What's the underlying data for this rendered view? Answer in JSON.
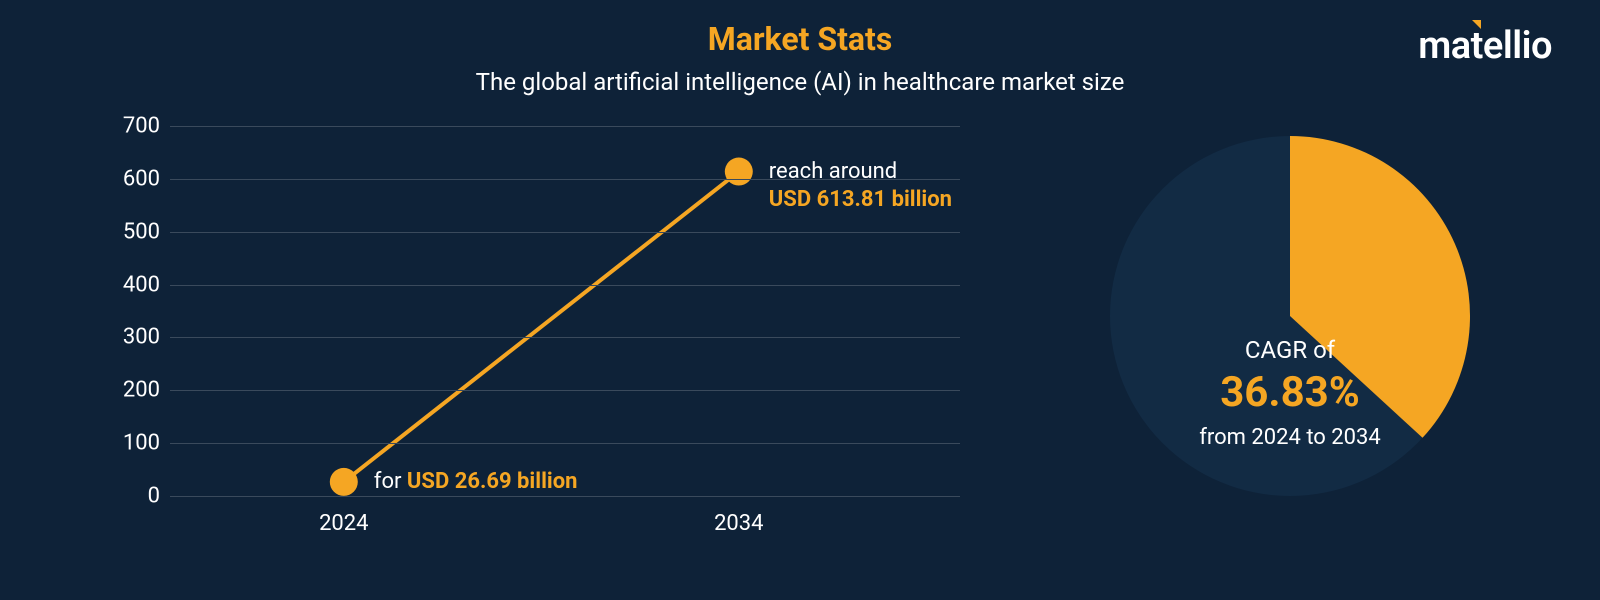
{
  "brand": {
    "name": "matellio"
  },
  "header": {
    "title": "Market Stats",
    "subtitle": "The global artificial intelligence (AI) in healthcare market size"
  },
  "line_chart": {
    "type": "line",
    "background_color": "#0e2238",
    "grid_color": "#3a4a5c",
    "line_color": "#f5a623",
    "line_width": 4,
    "marker_color": "#f5a623",
    "marker_radius": 14,
    "x_labels": [
      "2024",
      "2034"
    ],
    "y_ticks": [
      0,
      100,
      200,
      300,
      400,
      500,
      600,
      700
    ],
    "ylim": [
      0,
      700
    ],
    "data": [
      {
        "x": "2024",
        "y": 26.69
      },
      {
        "x": "2034",
        "y": 613.81
      }
    ],
    "annotations": {
      "start": {
        "prefix": "for ",
        "value": "USD 26.69 billion"
      },
      "end": {
        "prefix": "reach around",
        "value": "USD 613.81 billion"
      }
    },
    "axis_fontsize": 22,
    "annotation_fontsize": 22,
    "highlight_color": "#f5a623",
    "text_color": "#ffffff"
  },
  "pie": {
    "type": "pie",
    "percent": 36.83,
    "slice_color": "#f5a623",
    "remainder_color": "#122b44",
    "start_angle_deg": -90,
    "labels": {
      "cagr_prefix": "CAGR of",
      "cagr_value": "36.83%",
      "period": "from 2024 to 2034"
    },
    "cagr_prefix_fontsize": 24,
    "cagr_value_fontsize": 42,
    "period_fontsize": 22
  },
  "colors": {
    "background": "#0e2238",
    "accent": "#f5a623",
    "text": "#ffffff",
    "grid": "#3a4a5c",
    "pie_remainder": "#122b44"
  }
}
